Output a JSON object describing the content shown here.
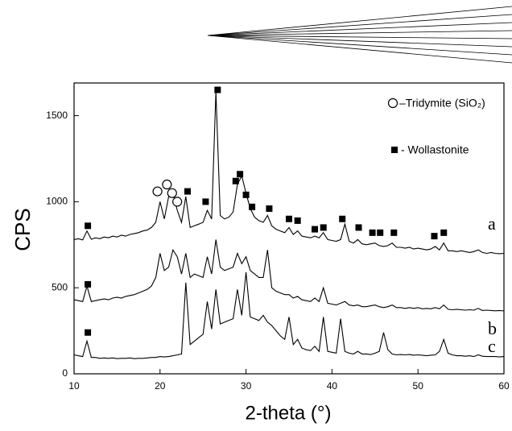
{
  "chart_data": {
    "type": "line",
    "x_label": "2-theta (°)",
    "y_label": "CPS",
    "xlim": [
      10,
      60
    ],
    "xticks": [
      10,
      20,
      30,
      40,
      50,
      60
    ],
    "ylim": [
      0,
      1690
    ],
    "yticks": [
      0,
      500,
      1000,
      1500
    ],
    "x": [
      10,
      10.5,
      11,
      11.5,
      12,
      12.5,
      13,
      13.5,
      14,
      14.5,
      15,
      15.5,
      16,
      16.5,
      17,
      17.5,
      18,
      18.5,
      19,
      19.5,
      20,
      20.5,
      21,
      21.5,
      22,
      22.5,
      23,
      23.5,
      24,
      24.5,
      25,
      25.5,
      26,
      26.5,
      27,
      27.5,
      28,
      28.5,
      29,
      29.5,
      30,
      30.5,
      31,
      31.5,
      32,
      32.5,
      33,
      33.5,
      34,
      34.5,
      35,
      35.5,
      36,
      36.5,
      37,
      37.5,
      38,
      38.5,
      39,
      39.5,
      40,
      40.5,
      41,
      41.5,
      42,
      42.5,
      43,
      43.5,
      44,
      44.5,
      45,
      45.5,
      46,
      46.5,
      47,
      47.5,
      48,
      48.5,
      49,
      49.5,
      50,
      50.5,
      51,
      51.5,
      52,
      52.5,
      53,
      53.5,
      54,
      54.5,
      55,
      55.5,
      56,
      56.5,
      57,
      57.5,
      58,
      58.5,
      59,
      59.5,
      60
    ],
    "series": [
      {
        "name": "a",
        "color": "#000000",
        "values": [
          780,
          785,
          778,
          830,
          782,
          790,
          785,
          795,
          790,
          800,
          795,
          805,
          800,
          810,
          815,
          820,
          830,
          835,
          850,
          880,
          1000,
          900,
          1030,
          1050,
          950,
          880,
          1030,
          850,
          860,
          870,
          880,
          950,
          900,
          1640,
          920,
          900,
          910,
          940,
          1100,
          1150,
          1050,
          960,
          910,
          890,
          880,
          920,
          860,
          840,
          830,
          820,
          850,
          810,
          830,
          800,
          795,
          790,
          800,
          790,
          820,
          780,
          775,
          770,
          780,
          870,
          770,
          760,
          780,
          755,
          750,
          755,
          760,
          745,
          740,
          745,
          760,
          735,
          735,
          730,
          735,
          725,
          730,
          725,
          720,
          725,
          740,
          720,
          760,
          715,
          715,
          710,
          715,
          710,
          705,
          710,
          720,
          705,
          700,
          705,
          700,
          698,
          700
        ]
      },
      {
        "name": "b",
        "color": "#000000",
        "values": [
          430,
          425,
          420,
          510,
          420,
          425,
          430,
          435,
          430,
          440,
          445,
          440,
          450,
          455,
          460,
          470,
          480,
          490,
          510,
          560,
          700,
          600,
          620,
          720,
          680,
          580,
          700,
          560,
          580,
          570,
          560,
          680,
          580,
          780,
          620,
          600,
          610,
          620,
          700,
          640,
          680,
          600,
          580,
          560,
          560,
          720,
          500,
          480,
          470,
          460,
          460,
          440,
          450,
          430,
          425,
          420,
          440,
          420,
          500,
          410,
          405,
          400,
          410,
          420,
          400,
          395,
          400,
          390,
          390,
          395,
          400,
          390,
          385,
          390,
          400,
          385,
          385,
          380,
          385,
          380,
          385,
          378,
          380,
          378,
          385,
          378,
          400,
          375,
          372,
          375,
          372,
          370,
          372,
          370,
          380,
          368,
          370,
          368,
          366,
          368,
          365
        ]
      },
      {
        "name": "c",
        "color": "#000000",
        "values": [
          110,
          105,
          100,
          190,
          95,
          95,
          90,
          92,
          90,
          92,
          88,
          90,
          90,
          92,
          88,
          90,
          90,
          92,
          95,
          95,
          100,
          98,
          100,
          105,
          110,
          115,
          530,
          170,
          190,
          210,
          230,
          420,
          260,
          490,
          290,
          300,
          310,
          320,
          490,
          340,
          590,
          330,
          320,
          310,
          340,
          300,
          280,
          250,
          220,
          200,
          330,
          170,
          200,
          150,
          140,
          135,
          160,
          130,
          330,
          130,
          125,
          120,
          320,
          130,
          120,
          115,
          130,
          115,
          115,
          112,
          120,
          130,
          240,
          140,
          115,
          110,
          112,
          110,
          112,
          108,
          110,
          108,
          105,
          108,
          110,
          130,
          200,
          120,
          110,
          105,
          105,
          102,
          105,
          100,
          110,
          102,
          100,
          100,
          100,
          98,
          100
        ]
      }
    ],
    "markers": [
      {
        "name": "–Tridymite (SiO₂)",
        "shape": "circle",
        "x": [
          19.7,
          20.8,
          21.4,
          22
        ],
        "y": [
          1060,
          1100,
          1050,
          1000
        ]
      },
      {
        "name": "- Wollastonite",
        "shape": "square",
        "x": [
          11.6,
          23.2,
          25.3,
          26.7,
          28.8,
          29.3,
          30,
          30.7,
          32.7,
          35,
          36,
          38,
          39,
          41.2,
          43.1,
          44.7,
          45.6,
          47.2,
          51.9,
          53,
          11.6,
          11.6
        ],
        "y": [
          860,
          1060,
          1000,
          1650,
          1120,
          1160,
          1040,
          970,
          960,
          900,
          890,
          840,
          850,
          900,
          850,
          820,
          820,
          820,
          800,
          820,
          520,
          240
        ]
      }
    ]
  }
}
